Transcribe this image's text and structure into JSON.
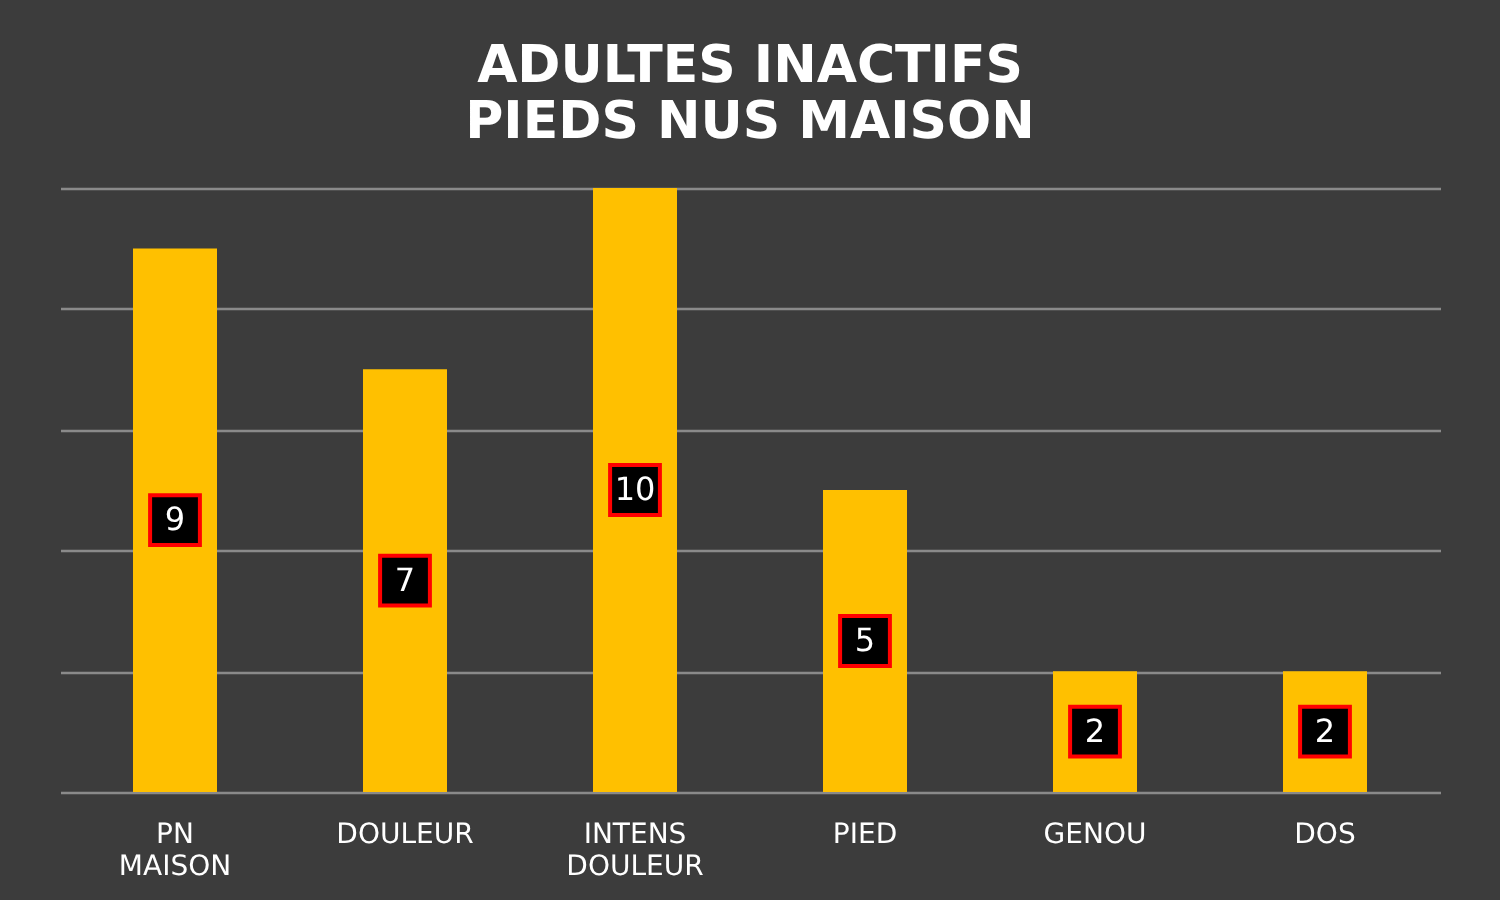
{
  "chart_data": {
    "type": "bar",
    "title": "ADULTES INACTIFS\nPIEDS NUS MAISON",
    "categories": [
      "PN MAISON",
      "DOULEUR",
      "INTENS DOULEUR",
      "PIED",
      "GENOU",
      "DOS"
    ],
    "values": [
      9,
      7,
      10,
      5,
      2,
      2
    ],
    "color": "#ffc000",
    "ylim": [
      0,
      10
    ],
    "yticks": [
      {
        "value": 0,
        "label": null
      },
      {
        "value": 2,
        "label": null
      },
      {
        "value": 4,
        "label": null
      },
      {
        "value": 6,
        "label": null
      },
      {
        "value": 8,
        "label": null
      },
      {
        "value": 10,
        "label": null
      }
    ],
    "grid": "y",
    "tick_labels": "x",
    "data_labels": true
  }
}
